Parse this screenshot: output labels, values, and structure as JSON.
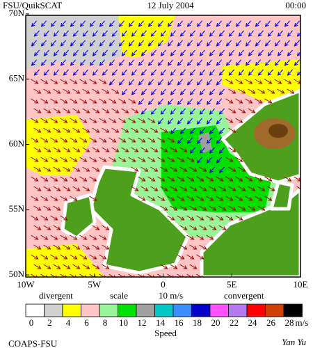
{
  "header": {
    "source": "FSU/QuikSCAT",
    "date": "12 July 2004",
    "time": "00:00"
  },
  "map": {
    "lat_labels": [
      "70N",
      "65N",
      "60N",
      "55N",
      "50N"
    ],
    "lon_labels": [
      "10W",
      "5W",
      "0",
      "5E",
      "10E"
    ]
  },
  "legend": {
    "divergent": "divergent",
    "scale": "scale",
    "scale_value": "10 m/s",
    "convergent": "convergent"
  },
  "colorbar": {
    "labels": [
      "0",
      "2",
      "4",
      "6",
      "8",
      "10",
      "12",
      "14",
      "16",
      "18",
      "20",
      "22",
      "24",
      "26",
      "28"
    ],
    "colors": [
      "#ffffff",
      "#d0d0d0",
      "#ffff00",
      "#ffc4c4",
      "#98f498",
      "#00e000",
      "#a0a0a0",
      "#00c8c8",
      "#3a8cff",
      "#0000c8",
      "#ff50ff",
      "#b478f0",
      "#ff0000",
      "#d04000",
      "#000000"
    ],
    "unit": "m/s",
    "title": "Speed"
  },
  "footer": {
    "left": "COAPS-FSU",
    "right": "Yan Yu"
  }
}
